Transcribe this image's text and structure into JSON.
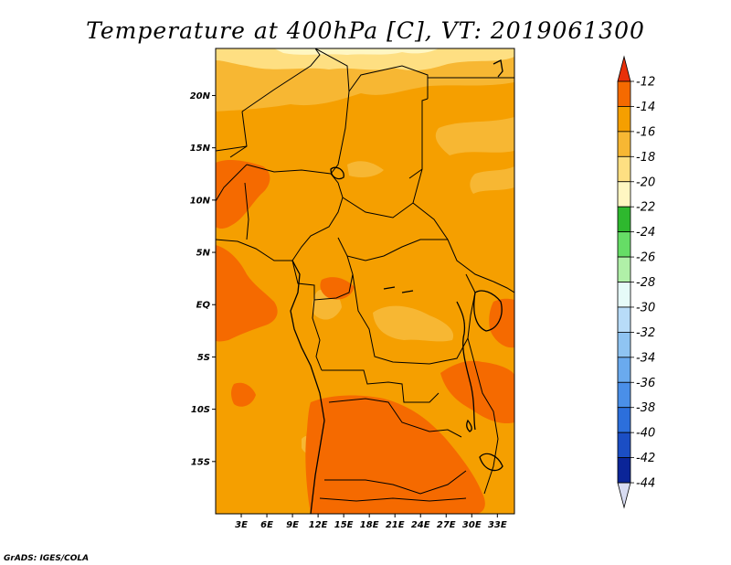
{
  "title": "Temperature at 400hPa [C], VT: 2019061300",
  "credit": "GrADS: IGES/COLA",
  "map": {
    "lon_range": [
      0,
      35
    ],
    "lat_range": [
      -20,
      24.5
    ],
    "lon_ticks": [
      "3E",
      "6E",
      "9E",
      "12E",
      "15E",
      "18E",
      "21E",
      "24E",
      "27E",
      "30E",
      "33E"
    ],
    "lat_ticks": [
      "20N",
      "15N",
      "10N",
      "5N",
      "EQ",
      "5S",
      "10S",
      "15S"
    ]
  },
  "colorbar": {
    "labels": [
      "-12",
      "-14",
      "-16",
      "-18",
      "-20",
      "-22",
      "-24",
      "-26",
      "-28",
      "-30",
      "-32",
      "-34",
      "-36",
      "-38",
      "-40",
      "-42",
      "-44"
    ],
    "colors": [
      "#e8300a",
      "#f56a00",
      "#f59f00",
      "#f7b733",
      "#fedf82",
      "#fff6c2",
      "#2eb82e",
      "#66dd66",
      "#b0f0a8",
      "#e6fbf8",
      "#b8dcf8",
      "#8fc4f2",
      "#6aaaee",
      "#4a8fe8",
      "#2c6fdc",
      "#1b4ec4",
      "#0b2598",
      "#0a0a6a",
      "#d8dcf2"
    ]
  },
  "colors": {
    "base_field": "#f59f00",
    "warm_field": "#f56a00",
    "cool_field": "#f7b733",
    "pale_field": "#fedf82"
  }
}
